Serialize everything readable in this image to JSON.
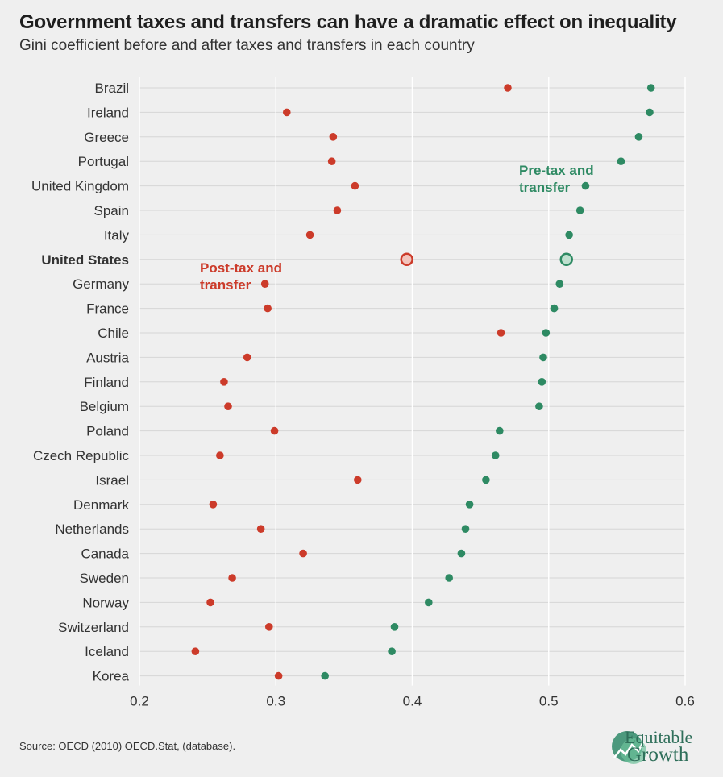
{
  "header": {
    "title": "Government taxes and transfers can have a dramatic effect on inequality",
    "subtitle": "Gini coefficient before and after taxes and transfers in each country"
  },
  "footer": {
    "source": "Source: OECD (2010) OECD.Stat, (database).",
    "logo_line1": "Equitable",
    "logo_line2": "Growth"
  },
  "colors": {
    "pre": "#2e8a63",
    "post": "#cc3b2a",
    "grid": "#d6d6d6",
    "background": "#efefef"
  },
  "chart_data": {
    "type": "scatter",
    "title": "Government taxes and transfers can have a dramatic effect on inequality",
    "subtitle": "Gini coefficient before and after taxes and transfers in each country",
    "xlim": [
      0.2,
      0.6
    ],
    "xticks": [
      "0.2",
      "0.3",
      "0.4",
      "0.5",
      "0.6"
    ],
    "grid": true,
    "highlight": "United States",
    "series": [
      {
        "name": "Pre-tax and transfer",
        "label_lines": [
          "Pre-tax and",
          "transfer"
        ]
      },
      {
        "name": "Post-tax and transfer",
        "label_lines": [
          "Post-tax and",
          "transfer"
        ]
      }
    ],
    "countries": [
      {
        "name": "Brazil",
        "pre": 0.575,
        "post": 0.47
      },
      {
        "name": "Ireland",
        "pre": 0.574,
        "post": 0.308
      },
      {
        "name": "Greece",
        "pre": 0.566,
        "post": 0.342
      },
      {
        "name": "Portugal",
        "pre": 0.553,
        "post": 0.341
      },
      {
        "name": "United Kingdom",
        "pre": 0.527,
        "post": 0.358
      },
      {
        "name": "Spain",
        "pre": 0.523,
        "post": 0.345
      },
      {
        "name": "Italy",
        "pre": 0.515,
        "post": 0.325
      },
      {
        "name": "United States",
        "pre": 0.513,
        "post": 0.396
      },
      {
        "name": "Germany",
        "pre": 0.508,
        "post": 0.292
      },
      {
        "name": "France",
        "pre": 0.504,
        "post": 0.294
      },
      {
        "name": "Chile",
        "pre": 0.498,
        "post": 0.465
      },
      {
        "name": "Austria",
        "pre": 0.496,
        "post": 0.279
      },
      {
        "name": "Finland",
        "pre": 0.495,
        "post": 0.262
      },
      {
        "name": "Belgium",
        "pre": 0.493,
        "post": 0.265
      },
      {
        "name": "Poland",
        "pre": 0.464,
        "post": 0.299
      },
      {
        "name": "Czech Republic",
        "pre": 0.461,
        "post": 0.259
      },
      {
        "name": "Israel",
        "pre": 0.454,
        "post": 0.36
      },
      {
        "name": "Denmark",
        "pre": 0.442,
        "post": 0.254
      },
      {
        "name": "Netherlands",
        "pre": 0.439,
        "post": 0.289
      },
      {
        "name": "Canada",
        "pre": 0.436,
        "post": 0.32
      },
      {
        "name": "Sweden",
        "pre": 0.427,
        "post": 0.268
      },
      {
        "name": "Norway",
        "pre": 0.412,
        "post": 0.252
      },
      {
        "name": "Switzerland",
        "pre": 0.387,
        "post": 0.295
      },
      {
        "name": "Iceland",
        "pre": 0.385,
        "post": 0.241
      },
      {
        "name": "Korea",
        "pre": 0.336,
        "post": 0.302
      }
    ]
  }
}
